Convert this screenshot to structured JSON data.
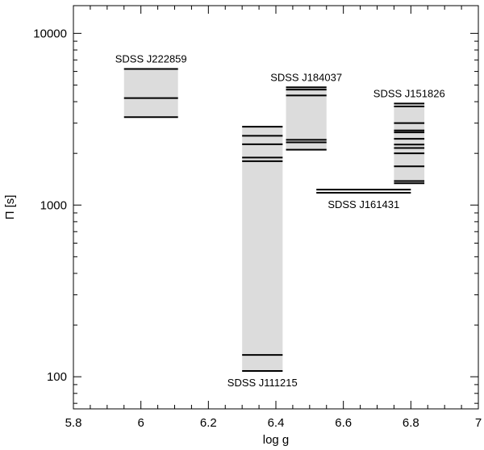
{
  "chart_data": {
    "type": "range-bars",
    "xlabel": "log g",
    "ylabel": "Π [s]",
    "yscale": "log",
    "xlim": [
      5.8,
      7.0
    ],
    "ylim": [
      65,
      14500
    ],
    "xticks": [
      5.8,
      6.0,
      6.2,
      6.4,
      6.6,
      6.8,
      7.0
    ],
    "xtick_labels": [
      "5.8",
      "6",
      "6.2",
      "6.4",
      "6.6",
      "6.8",
      "7"
    ],
    "yticks": [
      100,
      1000,
      10000
    ],
    "ytick_labels": [
      "100",
      "1000",
      "10000"
    ],
    "grid": false,
    "band_color": "#dcdcdc",
    "line_color": "#000000",
    "stars": [
      {
        "name": "SDSS J222859",
        "x_range": [
          5.95,
          6.11
        ],
        "periods": [
          3250,
          4200,
          6200
        ],
        "label_position": "above"
      },
      {
        "name": "SDSS J111215",
        "x_range": [
          6.3,
          6.42
        ],
        "periods": [
          108,
          134,
          1800,
          1890,
          2260,
          2530,
          2860
        ],
        "label_position": "below"
      },
      {
        "name": "SDSS J184037",
        "x_range": [
          6.43,
          6.55
        ],
        "periods": [
          2100,
          2320,
          2400,
          4350,
          4700,
          4850
        ],
        "label_position": "above"
      },
      {
        "name": "SDSS J161431",
        "x_range": [
          6.52,
          6.8
        ],
        "periods": [
          1180,
          1230
        ],
        "label_position": "below",
        "band": false
      },
      {
        "name": "SDSS J151826",
        "x_range": [
          6.75,
          6.84
        ],
        "periods": [
          1340,
          1380,
          1680,
          2000,
          2150,
          2250,
          2430,
          2650,
          2720,
          3000,
          3750,
          3900
        ],
        "label_position": "above"
      }
    ]
  }
}
